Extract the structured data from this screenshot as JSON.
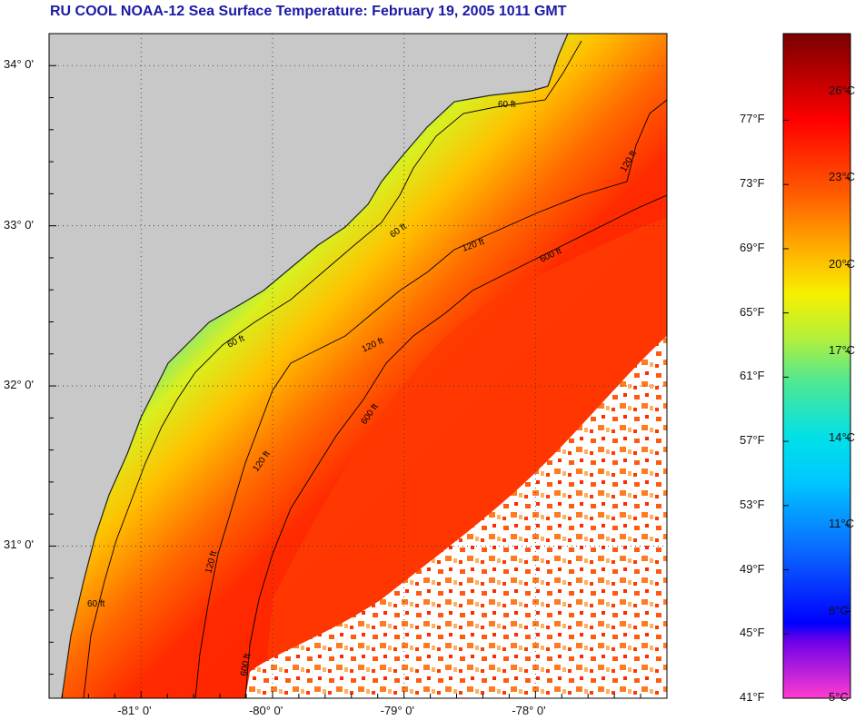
{
  "title": "RU COOL  NOAA-12  Sea Surface Temperature:  February 19, 2005 1011 GMT",
  "colors": {
    "land": "#c8c8c8",
    "no_data": "#ffffff",
    "coast": "#222222",
    "grid": "#333333",
    "contour": "#000000"
  },
  "map": {
    "latitude_labels": [
      "34° 0'",
      "33° 0'",
      "32° 0'",
      "31° 0'"
    ],
    "longitude_labels": [
      "-81° 0'",
      "-80° 0'",
      "-79° 0'",
      "-78° 0'"
    ],
    "lon_range": [
      -81.7,
      -77.0
    ],
    "lat_range": [
      30.05,
      34.2
    ],
    "grid_lats": [
      34,
      33,
      32,
      31
    ],
    "grid_lons": [
      -81,
      -80,
      -79,
      -78
    ],
    "contours": [
      {
        "label": "60 ft"
      },
      {
        "label": "60 ft"
      },
      {
        "label": "60 ft"
      },
      {
        "label": "60 ft"
      },
      {
        "label": "120 ft"
      },
      {
        "label": "120 ft"
      },
      {
        "label": "120 ft"
      },
      {
        "label": "120 ft"
      },
      {
        "label": "120 ft"
      },
      {
        "label": "600 ft"
      },
      {
        "label": "600 ft"
      },
      {
        "label": "600 ft"
      }
    ]
  },
  "colorbar": {
    "fahrenheit_labels": [
      "77°F",
      "73°F",
      "69°F",
      "65°F",
      "61°F",
      "57°F",
      "53°F",
      "49°F",
      "45°F",
      "41°F"
    ],
    "celsius_labels": [
      "26°C",
      "23°C",
      "20°C",
      "17°C",
      "14°C",
      "11°C",
      "8°C",
      "5°C"
    ],
    "range_c": [
      5,
      28
    ],
    "stops": [
      {
        "c": 5,
        "color": "#ff3ccf"
      },
      {
        "c": 7,
        "color": "#6a00e8"
      },
      {
        "c": 7.6,
        "color": "#0000ff"
      },
      {
        "c": 10,
        "color": "#0a64ff"
      },
      {
        "c": 12.5,
        "color": "#00c8ff"
      },
      {
        "c": 14,
        "color": "#00e0e8"
      },
      {
        "c": 16,
        "color": "#52e890"
      },
      {
        "c": 17.5,
        "color": "#b6f038"
      },
      {
        "c": 19,
        "color": "#f7f000"
      },
      {
        "c": 20.5,
        "color": "#ffb000"
      },
      {
        "c": 22.5,
        "color": "#ff5a00"
      },
      {
        "c": 25,
        "color": "#ff0000"
      },
      {
        "c": 28,
        "color": "#7a0000"
      }
    ]
  }
}
